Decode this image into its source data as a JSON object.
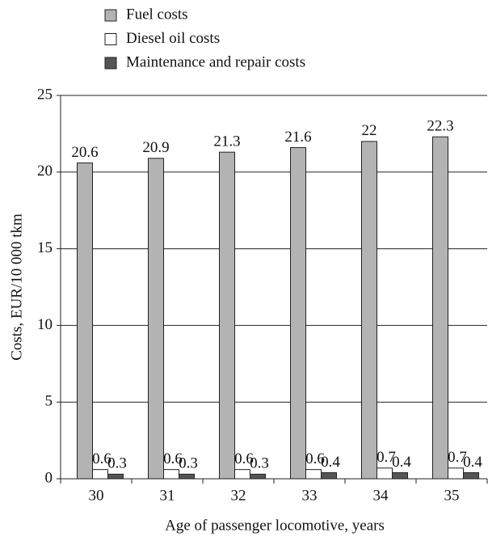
{
  "chart_data": {
    "type": "bar",
    "categories": [
      "30",
      "31",
      "32",
      "33",
      "34",
      "35"
    ],
    "series": [
      {
        "name": "Fuel costs",
        "color": "#b3b3b3",
        "values": [
          20.6,
          20.9,
          21.3,
          21.6,
          22,
          22.3
        ]
      },
      {
        "name": "Diesel oil costs",
        "color": "#ffffff",
        "values": [
          0.6,
          0.6,
          0.6,
          0.6,
          0.7,
          0.7
        ]
      },
      {
        "name": "Maintenance and repair costs",
        "color": "#555555",
        "values": [
          0.3,
          0.3,
          0.3,
          0.4,
          0.4,
          0.4
        ]
      }
    ],
    "xlabel": "Age of passenger locomotive, years",
    "ylabel": "Costs, EUR/10 000 tkm",
    "ylim": [
      0,
      25
    ],
    "yticks": [
      0,
      5,
      10,
      15,
      20,
      25
    ],
    "grid": true
  }
}
